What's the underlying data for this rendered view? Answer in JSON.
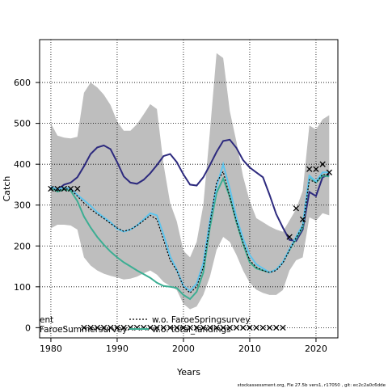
{
  "chart_data": {
    "type": "line",
    "xlabel": "Years",
    "ylabel": "Catch",
    "xlim": [
      1978.3,
      2023.3
    ],
    "ylim": [
      -25,
      705
    ],
    "xticks": [
      1980,
      1990,
      2000,
      2010,
      2020
    ],
    "yticks": [
      0,
      100,
      200,
      300,
      400,
      500,
      600
    ],
    "grid": true,
    "colors": {
      "band": "#bebebe",
      "fit": "#000000",
      "observed": "#000000",
      "purple": "#2d2a7e",
      "cyan": "#5ec5ee",
      "teal": "#3cae93"
    },
    "legend": [
      {
        "label": "ent",
        "color": "#2d2a7e",
        "style": "solid"
      },
      {
        "label": "w.o. FaroeSpringsurvey",
        "color": "#000000",
        "style": "dotted"
      },
      {
        "label": "FaroeSummersurvey",
        "color": "#5ec5ee",
        "style": "solid"
      },
      {
        "label": "w.o. total_landings",
        "color": "#3cae93",
        "style": "solid"
      }
    ],
    "x": [
      1980,
      1981,
      1982,
      1983,
      1984,
      1985,
      1986,
      1987,
      1988,
      1989,
      1990,
      1991,
      1992,
      1993,
      1994,
      1995,
      1996,
      1997,
      1998,
      1999,
      2000,
      2001,
      2002,
      2003,
      2004,
      2005,
      2006,
      2007,
      2008,
      2009,
      2010,
      2011,
      2012,
      2013,
      2014,
      2015,
      2016,
      2017,
      2018,
      2019,
      2020,
      2021,
      2022
    ],
    "band_upper": [
      500,
      470,
      465,
      463,
      467,
      575,
      600,
      588,
      570,
      545,
      505,
      482,
      482,
      498,
      522,
      547,
      535,
      400,
      305,
      260,
      188,
      172,
      210,
      300,
      480,
      672,
      660,
      530,
      455,
      370,
      310,
      268,
      258,
      248,
      240,
      235,
      262,
      290,
      335,
      495,
      485,
      510,
      520
    ],
    "band_lower": [
      243,
      252,
      252,
      250,
      240,
      172,
      152,
      140,
      132,
      127,
      123,
      118,
      120,
      125,
      133,
      140,
      130,
      112,
      102,
      92,
      58,
      45,
      52,
      80,
      125,
      190,
      222,
      210,
      178,
      140,
      110,
      93,
      85,
      80,
      80,
      92,
      140,
      165,
      172,
      270,
      262,
      280,
      275
    ],
    "series": [
      {
        "name": "",
        "key": "purple",
        "values": [
          345,
          338,
          350,
          355,
          368,
          395,
          425,
          441,
          446,
          437,
          405,
          370,
          355,
          352,
          362,
          378,
          398,
          420,
          425,
          405,
          375,
          350,
          348,
          368,
          398,
          430,
          457,
          460,
          440,
          410,
          392,
          380,
          368,
          325,
          278,
          245,
          215,
          212,
          240,
          332,
          322,
          368,
          375
        ]
      },
      {
        "name": "",
        "key": "cyan",
        "values": [
          345,
          338,
          343,
          340,
          325,
          312,
          298,
          282,
          270,
          258,
          242,
          235,
          240,
          250,
          265,
          280,
          275,
          228,
          175,
          142,
          102,
          90,
          108,
          158,
          262,
          345,
          400,
          340,
          270,
          218,
          178,
          155,
          145,
          135,
          142,
          160,
          192,
          222,
          252,
          372,
          358,
          380,
          380
        ]
      },
      {
        "name": "",
        "key": "fit",
        "values": [
          343,
          335,
          340,
          338,
          322,
          305,
          290,
          278,
          267,
          255,
          244,
          236,
          240,
          250,
          262,
          275,
          265,
          215,
          165,
          140,
          100,
          85,
          100,
          148,
          255,
          355,
          382,
          320,
          260,
          208,
          165,
          148,
          140,
          135,
          140,
          158,
          190,
          220,
          248,
          362,
          355,
          375,
          373
        ]
      },
      {
        "name": "",
        "key": "teal",
        "values": [
          343,
          333,
          338,
          335,
          310,
          272,
          245,
          222,
          203,
          186,
          172,
          160,
          150,
          140,
          131,
          122,
          110,
          102,
          100,
          97,
          80,
          70,
          88,
          135,
          245,
          330,
          365,
          320,
          258,
          205,
          160,
          145,
          140,
          135,
          142,
          160,
          190,
          218,
          245,
          370,
          355,
          372,
          370
        ]
      }
    ],
    "observed_x": [
      1980,
      1981,
      1982,
      1983,
      1984,
      1985,
      1986,
      1987,
      1988,
      1989,
      1990,
      1991,
      1992,
      1993,
      1994,
      1995,
      1996,
      1997,
      1998,
      1999,
      2000,
      2001,
      2002,
      2003,
      2004,
      2005,
      2006,
      2007,
      2008,
      2009,
      2010,
      2011,
      2012,
      2013,
      2014,
      2015,
      2016,
      2017,
      2018,
      2019,
      2020,
      2021,
      2022
    ],
    "observed_y": [
      340,
      340,
      340,
      340,
      340,
      0,
      0,
      0,
      0,
      0,
      0,
      0,
      0,
      0,
      0,
      0,
      0,
      0,
      0,
      0,
      0,
      0,
      0,
      0,
      0,
      0,
      0,
      0,
      0,
      0,
      0,
      0,
      0,
      0,
      0,
      0,
      222,
      292,
      265,
      388,
      388,
      400,
      380
    ]
  },
  "footer": "stockassessment.org, Fle  27.5b  vers1, r17050 , git: ec2c2a0c6dde"
}
